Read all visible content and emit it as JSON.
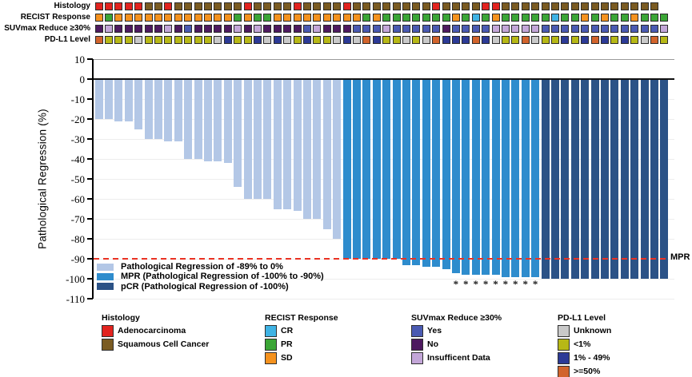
{
  "tracks": {
    "rows": [
      {
        "id": "histology",
        "label": "Histology",
        "palette": {
          "A": "#e2231f",
          "S": "#7a5b22"
        },
        "legend_keys": {
          "A": "Adenocarcinoma",
          "S": "Squamous Cell Cancer"
        },
        "cells": "AAAAASSASSSSSSSASSSSASSSSASSSSSSSSASSSSAASSSSSSSSSSSSSSSS"
      },
      {
        "id": "recist-response",
        "label": "RECIST Response",
        "palette": {
          "C": "#3fb3e4",
          "G": "#3ba636",
          "O": "#f5921e"
        },
        "legend_keys": {
          "C": "CR",
          "G": "PR",
          "O": "SD"
        },
        "cells": "OGOOOOOOOOOOOOGOGGOOOOOOOOOGOGGGGGGGOGCGOGGGGGCGGOGOGGOGGG"
      },
      {
        "id": "suvmax-reduce",
        "label": "SUVmax Reduce ≥30%",
        "palette": {
          "B": "#4a5ab2",
          "P": "#4e1a60",
          "L": "#c3a6d8"
        },
        "legend_keys": {
          "B": "Yes",
          "P": "No",
          "L": "Insufficent Data"
        },
        "cells": "PLPPPPPLPBPPPPLPLPPPPBLPPPBBBLBBBBBPBBBBLLLLLBBBBBBBBBBBBL"
      },
      {
        "id": "pdl1-level",
        "label": "PD-L1 Level",
        "palette": {
          "U": "#c9c9c9",
          "Y": "#b7b816",
          "N": "#2c3a96",
          "O": "#d2642c"
        },
        "legend_keys": {
          "U": "Unknown",
          "Y": "<1%",
          "N": "1% - 49%",
          "O": ">=50%"
        },
        "cells": "OYYYUYYYYYYYUNYYNUNUYNYYUNUONYYUYUONNNONUYYOUYYNYNONYNYUOY"
      }
    ]
  },
  "chart_data": {
    "type": "bar",
    "subtype": "waterfall",
    "title": "",
    "xlabel": "",
    "ylabel": "Pathological Regression (%)",
    "ylim": [
      -110,
      10
    ],
    "yticks": [
      10,
      0,
      -10,
      -20,
      -30,
      -40,
      -50,
      -60,
      -70,
      -80,
      -90,
      -100,
      -110
    ],
    "grid": "horizontal",
    "n_columns": 58,
    "values": [
      -20,
      -20,
      -21,
      -21,
      -25,
      -30,
      -30,
      -31,
      -31,
      -40,
      -40,
      -41,
      -41,
      -42,
      -54,
      -60,
      -60,
      -60,
      -65,
      -65,
      -66,
      -70,
      -70,
      -75,
      -80,
      -90,
      -90,
      -90,
      -90,
      -90,
      -90,
      -93,
      -93,
      -94,
      -94,
      -95,
      -97,
      -98,
      -98,
      -98,
      -98,
      -99,
      -99,
      -99,
      -99,
      -100,
      -100,
      -100,
      -100,
      -100,
      -100,
      -100,
      -100,
      -100,
      -100,
      -100,
      -100,
      -100
    ],
    "colors": {
      "light": "#b3c7e6",
      "mpr": "#2e8ccd",
      "pcr": "#2b5286"
    },
    "category_rule": {
      "light": "value > -90",
      "mpr": "-100 < value <= -90",
      "pcr": "value = -100"
    },
    "mpr_line": {
      "y": -90,
      "label": "MPR",
      "color": "#ea3223",
      "style": "dashed"
    },
    "asterisk_columns": [
      37,
      38,
      39,
      40,
      41,
      42,
      43,
      44,
      45
    ],
    "asterisk_symbol": "*",
    "legend_position": "inside-bottom-left",
    "legend": [
      {
        "label": "Pathological Regression of -89% to 0%",
        "color": "#b3c7e6"
      },
      {
        "label": "MPR (Pathological Regression of -100% to -90%)",
        "color": "#2e8ccd"
      },
      {
        "label": "pCR (Pathological Regression of -100%)",
        "color": "#2b5286"
      }
    ]
  },
  "bottom_legends": [
    {
      "id": "histology",
      "title": "Histology",
      "items": [
        {
          "label": "Adenocarcinoma",
          "color": "#e2231f"
        },
        {
          "label": "Squamous Cell Cancer",
          "color": "#7a5b22"
        }
      ]
    },
    {
      "id": "recist-response",
      "title": "RECIST Response",
      "items": [
        {
          "label": "CR",
          "color": "#3fb3e4"
        },
        {
          "label": "PR",
          "color": "#3ba636"
        },
        {
          "label": "SD",
          "color": "#f5921e"
        }
      ]
    },
    {
      "id": "suvmax-reduce",
      "title": "SUVmax Reduce ≥30%",
      "items": [
        {
          "label": "Yes",
          "color": "#4a5ab2"
        },
        {
          "label": "No",
          "color": "#4e1a60"
        },
        {
          "label": "Insufficent Data",
          "color": "#c3a6d8"
        }
      ]
    },
    {
      "id": "pdl1-level",
      "title": "PD-L1 Level",
      "items": [
        {
          "label": "Unknown",
          "color": "#c9c9c9"
        },
        {
          "label": "<1%",
          "color": "#b7b816"
        },
        {
          "label": "1% - 49%",
          "color": "#2c3a96"
        },
        {
          "label": ">=50%",
          "color": "#d2642c"
        }
      ]
    }
  ]
}
